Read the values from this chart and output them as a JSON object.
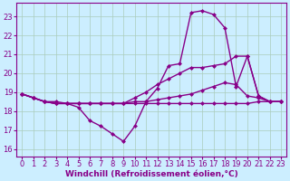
{
  "background_color": "#cceeff",
  "grid_color": "#aaccbb",
  "line_color": "#880088",
  "marker": "D",
  "markersize": 2.5,
  "linewidth": 1.0,
  "xlabel": "Windchill (Refroidissement éolien,°C)",
  "xlabel_fontsize": 6.5,
  "tick_fontsize": 6,
  "ylim": [
    15.6,
    23.7
  ],
  "xlim": [
    -0.5,
    23.5
  ],
  "yticks": [
    16,
    17,
    18,
    19,
    20,
    21,
    22,
    23
  ],
  "xticks": [
    0,
    1,
    2,
    3,
    4,
    5,
    6,
    7,
    8,
    9,
    10,
    11,
    12,
    13,
    14,
    15,
    16,
    17,
    18,
    19,
    20,
    21,
    22,
    23
  ],
  "line1": [
    18.9,
    18.7,
    18.5,
    18.5,
    18.4,
    18.2,
    17.5,
    17.2,
    16.8,
    16.4,
    17.2,
    18.5,
    19.2,
    20.4,
    20.5,
    23.2,
    23.3,
    23.1,
    22.4,
    19.3,
    20.9,
    18.8,
    18.5,
    18.5
  ],
  "line2": [
    18.9,
    18.7,
    18.5,
    18.4,
    18.4,
    18.4,
    18.4,
    18.4,
    18.4,
    18.4,
    18.7,
    19.0,
    19.4,
    19.7,
    20.0,
    20.3,
    20.3,
    20.4,
    20.5,
    20.9,
    20.9,
    18.8,
    18.5,
    18.5
  ],
  "line3": [
    18.9,
    18.7,
    18.5,
    18.4,
    18.4,
    18.4,
    18.4,
    18.4,
    18.4,
    18.4,
    18.5,
    18.5,
    18.6,
    18.7,
    18.8,
    18.9,
    19.1,
    19.3,
    19.5,
    19.4,
    18.8,
    18.7,
    18.5,
    18.5
  ],
  "line4": [
    18.9,
    18.7,
    18.5,
    18.4,
    18.4,
    18.4,
    18.4,
    18.4,
    18.4,
    18.4,
    18.4,
    18.4,
    18.4,
    18.4,
    18.4,
    18.4,
    18.4,
    18.4,
    18.4,
    18.4,
    18.4,
    18.5,
    18.5,
    18.5
  ]
}
